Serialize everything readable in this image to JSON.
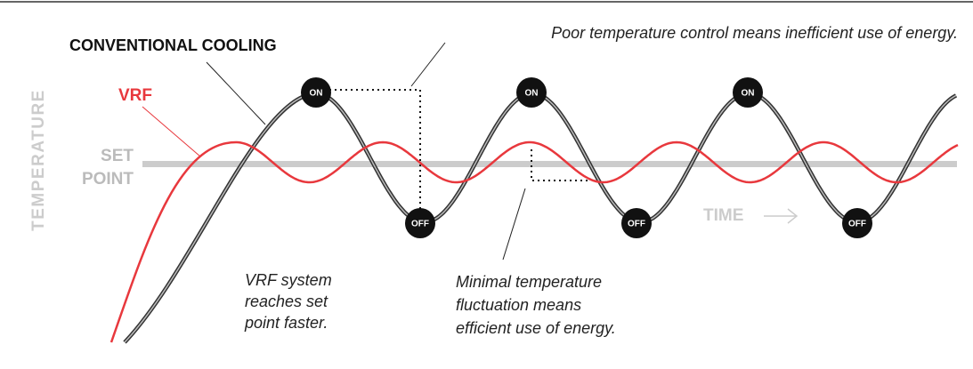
{
  "labels": {
    "conventional": "CONVENTIONAL COOLING",
    "vrf": "VRF",
    "temperature": "TEMPERATURE",
    "set_point": [
      "SET",
      "POINT"
    ],
    "time": "TIME"
  },
  "states": {
    "on": [
      "ON",
      "ON",
      "ON"
    ],
    "off": [
      "OFF",
      "OFF",
      "OFF"
    ]
  },
  "notes": {
    "poor": "Poor temperature control means inefficient use of energy.",
    "vrf_faster": [
      "VRF system",
      "reaches set",
      "point faster."
    ],
    "minimal": [
      "Minimal temperature",
      "fluctuation means",
      "efficient use of energy."
    ]
  }
}
